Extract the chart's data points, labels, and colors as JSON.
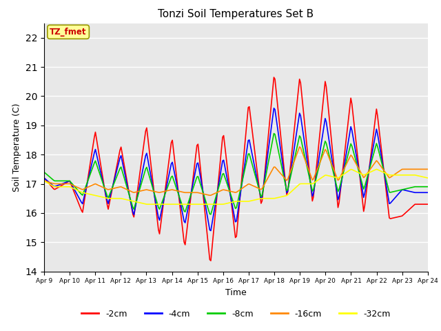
{
  "title": "Tonzi Soil Temperatures Set B",
  "xlabel": "Time",
  "ylabel": "Soil Temperature (C)",
  "ylim": [
    14.0,
    22.5
  ],
  "yticks": [
    14.0,
    15.0,
    16.0,
    17.0,
    18.0,
    19.0,
    20.0,
    21.0,
    22.0
  ],
  "xtick_labels": [
    "Apr 9",
    "Apr 10",
    "Apr 11",
    "Apr 12",
    "Apr 13",
    "Apr 14",
    "Apr 15",
    "Apr 16",
    "Apr 17",
    "Apr 18",
    "Apr 19",
    "Apr 20",
    "Apr 21",
    "Apr 22",
    "Apr 23",
    "Apr 24"
  ],
  "annotation_label": "TZ_fmet",
  "annotation_color": "#cc0000",
  "annotation_bg": "#ffff99",
  "annotation_border": "#999900",
  "line_colors": {
    "-2cm": "#ff0000",
    "-4cm": "#0000ff",
    "-8cm": "#00cc00",
    "-16cm": "#ff8800",
    "-32cm": "#ffff00"
  },
  "line_width": 1.2,
  "plot_bg_color": "#e8e8e8",
  "grid_color": "#ffffff",
  "ctrl_t": [
    0,
    0.4,
    1.0,
    1.5,
    2.0,
    2.5,
    3.0,
    3.5,
    4.0,
    4.5,
    5.0,
    5.5,
    6.0,
    6.5,
    7.0,
    7.5,
    8.0,
    8.5,
    9.0,
    9.5,
    10.0,
    10.5,
    11.0,
    11.5,
    12.0,
    12.5,
    13.0,
    13.5,
    14.0,
    14.5,
    15.0
  ],
  "ctrl_v_2cm": [
    17.2,
    16.8,
    17.1,
    16.0,
    18.8,
    16.1,
    18.3,
    15.8,
    19.0,
    15.2,
    18.6,
    14.8,
    18.5,
    14.2,
    18.8,
    15.0,
    19.8,
    16.2,
    20.8,
    16.5,
    20.7,
    16.3,
    20.6,
    16.1,
    20.0,
    16.0,
    19.6,
    15.8,
    15.9,
    16.3,
    16.3
  ],
  "ctrl_v_4cm": [
    17.2,
    16.9,
    17.1,
    16.3,
    18.2,
    16.3,
    18.0,
    15.9,
    18.1,
    15.7,
    17.8,
    15.6,
    17.8,
    15.3,
    17.9,
    15.6,
    18.6,
    16.4,
    19.7,
    16.6,
    19.5,
    16.5,
    19.3,
    16.4,
    19.0,
    16.5,
    18.9,
    16.3,
    16.8,
    16.7,
    16.7
  ],
  "ctrl_v_8cm": [
    17.4,
    17.1,
    17.1,
    16.6,
    17.8,
    16.5,
    17.6,
    16.1,
    17.6,
    16.1,
    17.3,
    16.0,
    17.3,
    15.9,
    17.4,
    16.1,
    18.1,
    16.5,
    18.8,
    16.7,
    18.7,
    16.7,
    18.5,
    16.7,
    18.4,
    16.8,
    18.4,
    16.7,
    16.8,
    16.9,
    16.9
  ],
  "ctrl_v_16cm": [
    17.1,
    17.0,
    17.0,
    16.8,
    17.0,
    16.8,
    16.9,
    16.7,
    16.8,
    16.7,
    16.8,
    16.7,
    16.7,
    16.6,
    16.8,
    16.7,
    17.0,
    16.8,
    17.6,
    17.1,
    18.3,
    17.1,
    18.2,
    17.1,
    18.0,
    17.2,
    17.8,
    17.2,
    17.5,
    17.5,
    17.5
  ],
  "ctrl_v_32cm": [
    17.1,
    16.9,
    16.9,
    16.7,
    16.6,
    16.5,
    16.5,
    16.4,
    16.3,
    16.3,
    16.3,
    16.3,
    16.3,
    16.3,
    16.3,
    16.4,
    16.4,
    16.5,
    16.5,
    16.6,
    17.0,
    17.0,
    17.3,
    17.2,
    17.5,
    17.3,
    17.5,
    17.3,
    17.3,
    17.3,
    17.2
  ]
}
